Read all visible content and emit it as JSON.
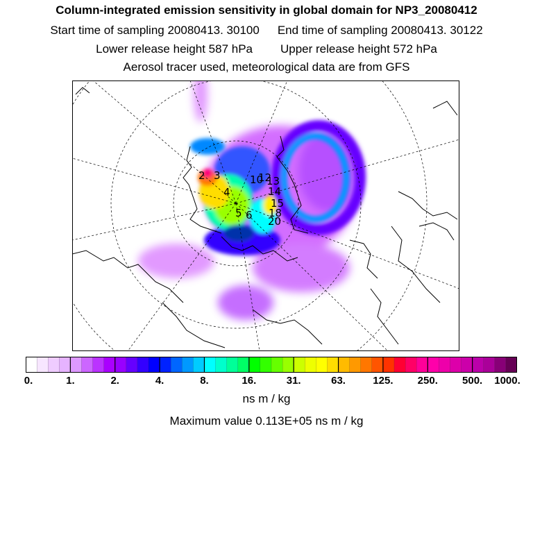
{
  "header": {
    "title": "Column-integrated emission sensitivity in global domain for NP3_20080412",
    "start_label": "Start time of sampling 20080413. 30100",
    "end_label": "End time of sampling 20080413. 30122",
    "lower_label": "Lower release height  587 hPa",
    "upper_label": "Upper release height  572 hPa",
    "tracer_label": "Aerosol tracer used, meteorological data are from GFS"
  },
  "map": {
    "projection": "polar-stereographic",
    "release_labels": [
      "2",
      "3",
      "4",
      "5",
      "6",
      "10",
      "12",
      "13",
      "14",
      "15",
      "18",
      "20"
    ]
  },
  "colorbar": {
    "ticks": [
      "0.",
      "1.",
      "2.",
      "4.",
      "8.",
      "16.",
      "31.",
      "63.",
      "125.",
      "250.",
      "500.",
      "1000."
    ],
    "units": "ns m / kg",
    "colors": [
      "#ffffff",
      "#f7e6ff",
      "#efccff",
      "#e6b3ff",
      "#dd99ff",
      "#cc66ff",
      "#bb33ff",
      "#aa00ff",
      "#9900ff",
      "#6600ff",
      "#3300ff",
      "#0000ff",
      "#0022ff",
      "#0066ff",
      "#0099ff",
      "#00ccff",
      "#00ffff",
      "#00ffcc",
      "#00ff99",
      "#00ff66",
      "#00ff00",
      "#33ff00",
      "#66ff00",
      "#99ff00",
      "#ccff00",
      "#eeff00",
      "#ffff00",
      "#ffdd00",
      "#ffbb00",
      "#ff9900",
      "#ff7700",
      "#ff5500",
      "#ff3300",
      "#ff0033",
      "#ff0066",
      "#ff0099",
      "#ff00aa",
      "#ee00aa",
      "#dd00aa",
      "#cc00aa",
      "#bb00aa",
      "#aa0099",
      "#880077",
      "#660055"
    ]
  },
  "maximum": "Maximum value  0.113E+05 ns m / kg"
}
